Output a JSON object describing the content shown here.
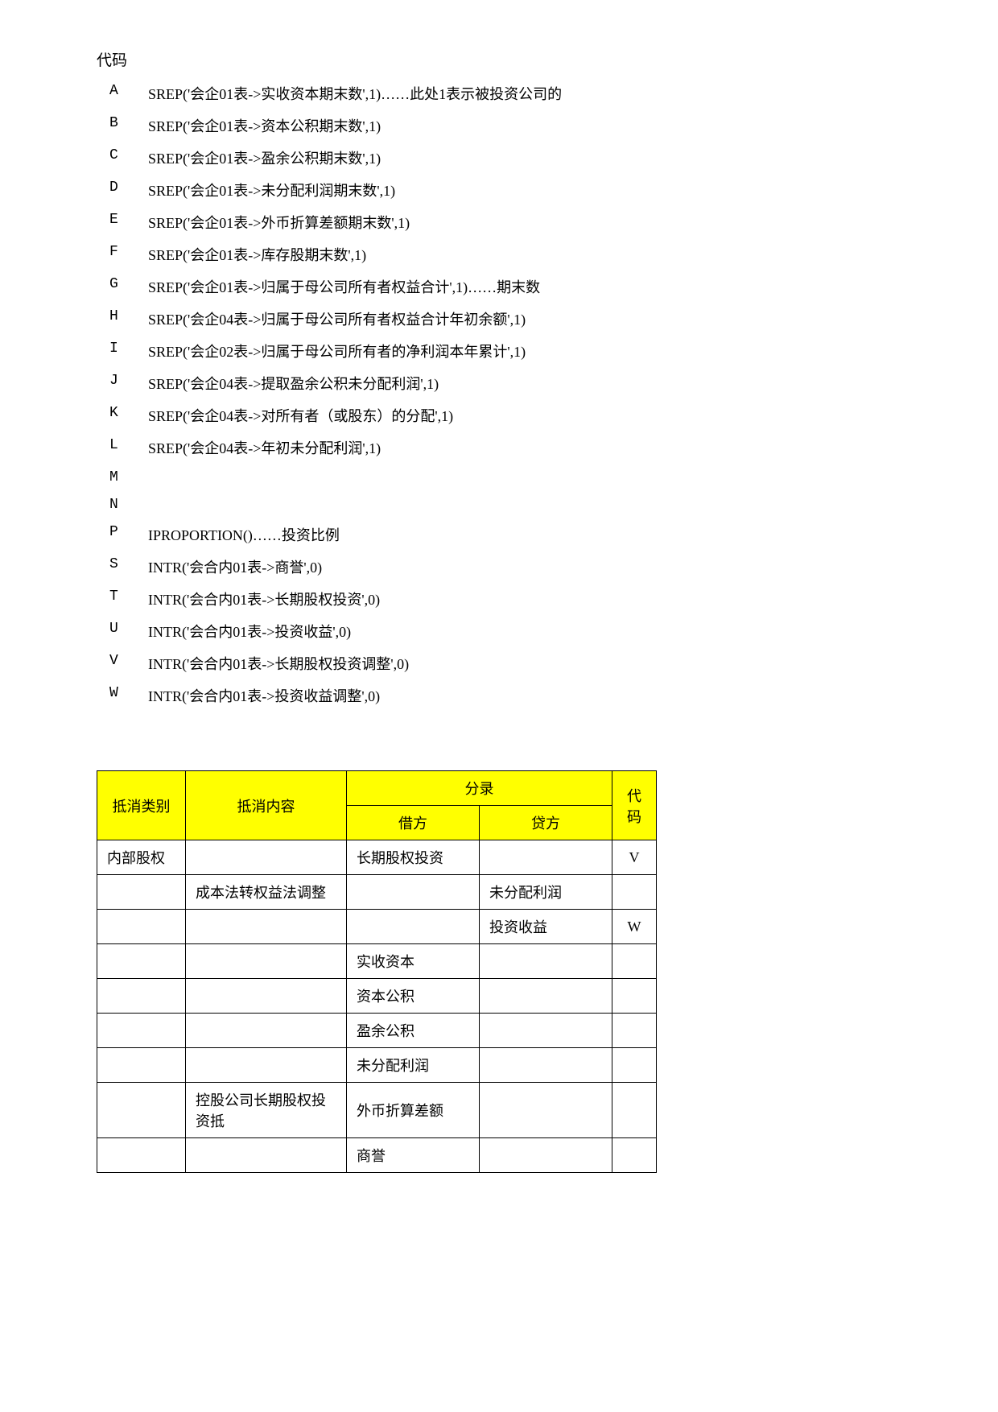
{
  "section_title": "代码",
  "codes": [
    {
      "letter": "A",
      "desc": "SREP('会企01表->实收资本期末数',1)……此处1表示被投资公司的"
    },
    {
      "letter": "B",
      "desc": "SREP('会企01表->资本公积期末数',1)"
    },
    {
      "letter": "C",
      "desc": "SREP('会企01表->盈余公积期末数',1)"
    },
    {
      "letter": "D",
      "desc": "SREP('会企01表->未分配利润期末数',1)"
    },
    {
      "letter": "E",
      "desc": "SREP('会企01表->外币折算差额期末数',1)"
    },
    {
      "letter": "F",
      "desc": "SREP('会企01表->库存股期末数',1)"
    },
    {
      "letter": "G",
      "desc": "SREP('会企01表->归属于母公司所有者权益合计',1)……期末数"
    },
    {
      "letter": "H",
      "desc": "SREP('会企04表->归属于母公司所有者权益合计年初余额',1)"
    },
    {
      "letter": "I",
      "desc": "SREP('会企02表->归属于母公司所有者的净利润本年累计',1)"
    },
    {
      "letter": "J",
      "desc": "SREP('会企04表->提取盈余公积未分配利润',1)"
    },
    {
      "letter": "K",
      "desc": "SREP('会企04表->对所有者（或股东）的分配',1)"
    },
    {
      "letter": "L",
      "desc": "SREP('会企04表->年初未分配利润',1)"
    },
    {
      "letter": "M",
      "desc": ""
    },
    {
      "letter": "N",
      "desc": ""
    },
    {
      "letter": "P",
      "desc": "IPROPORTION()……投资比例"
    },
    {
      "letter": "S",
      "desc": "INTR('会合内01表->商誉',0)"
    },
    {
      "letter": "T",
      "desc": "INTR('会合内01表->长期股权投资',0)"
    },
    {
      "letter": "U",
      "desc": "INTR('会合内01表->投资收益',0)"
    },
    {
      "letter": "V",
      "desc": "INTR('会合内01表->长期股权投资调整',0)"
    },
    {
      "letter": "W",
      "desc": "INTR('会合内01表->投资收益调整',0)"
    }
  ],
  "table": {
    "headers": {
      "category": "抵消类别",
      "content": "抵消内容",
      "entry": "分录",
      "debit": "借方",
      "credit": "贷方",
      "code": "代码"
    },
    "rows": [
      {
        "category": "内部股权",
        "content": "",
        "debit": "长期股权投资",
        "credit": "",
        "code": "V"
      },
      {
        "category": "",
        "content": "成本法转权益法调整",
        "debit": "",
        "credit": "未分配利润",
        "code": ""
      },
      {
        "category": "",
        "content": "",
        "debit": "",
        "credit": "投资收益",
        "code": "W"
      },
      {
        "category": "",
        "content": "",
        "debit": "实收资本",
        "credit": "",
        "code": ""
      },
      {
        "category": "",
        "content": "",
        "debit": "资本公积",
        "credit": "",
        "code": ""
      },
      {
        "category": "",
        "content": "",
        "debit": "盈余公积",
        "credit": "",
        "code": ""
      },
      {
        "category": "",
        "content": "",
        "debit": "未分配利润",
        "credit": "",
        "code": ""
      },
      {
        "category": "",
        "content": "控股公司长期股权投资抵",
        "debit": "外币折算差额",
        "credit": "",
        "code": ""
      },
      {
        "category": "",
        "content": "",
        "debit": "商誉",
        "credit": "",
        "code": ""
      }
    ]
  }
}
